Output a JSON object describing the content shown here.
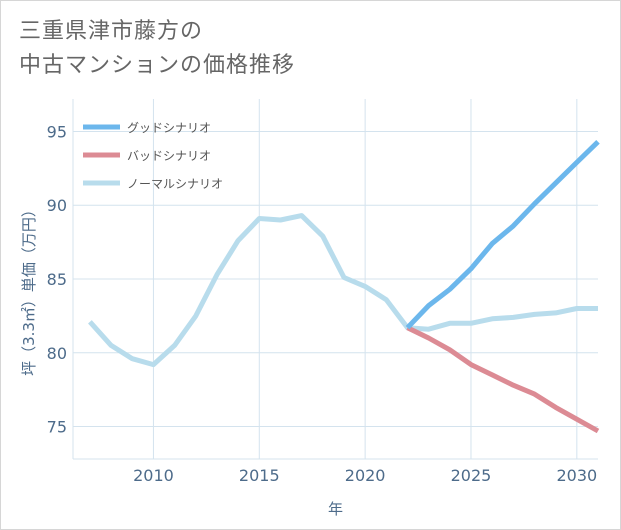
{
  "title": {
    "line1": "三重県津市藤方の",
    "line2": "中古マンションの価格推移"
  },
  "colors": {
    "good": "#6cb7ec",
    "bad": "#dc8b94",
    "normal": "#b8dcec",
    "axis": "#4d6b8a",
    "grid": "#d4e3ee"
  },
  "chart_data": {
    "type": "line",
    "title": "三重県津市藤方の中古マンションの価格推移",
    "xlabel": "年",
    "ylabel": "坪（3.3㎡）単価（万円）",
    "xlim": [
      2006.2,
      2031.0
    ],
    "ylim": [
      72.8,
      97.2
    ],
    "xticks": [
      2010,
      2015,
      2020,
      2025,
      2030
    ],
    "yticks": [
      75,
      80,
      85,
      90,
      95
    ],
    "grid": true,
    "legend_position": "top-left",
    "series": [
      {
        "name": "グッドシナリオ",
        "color_key": "good",
        "x": [
          2022,
          2023,
          2024,
          2025,
          2026,
          2027,
          2028,
          2029,
          2030,
          2031
        ],
        "values": [
          81.7,
          83.2,
          84.3,
          85.7,
          87.4,
          88.6,
          90.1,
          91.5,
          92.9,
          94.3
        ]
      },
      {
        "name": "バッドシナリオ",
        "color_key": "bad",
        "x": [
          2022,
          2023,
          2024,
          2025,
          2026,
          2027,
          2028,
          2029,
          2030,
          2031
        ],
        "values": [
          81.7,
          81.0,
          80.2,
          79.2,
          78.5,
          77.8,
          77.2,
          76.3,
          75.5,
          74.7
        ]
      },
      {
        "name": "ノーマルシナリオ",
        "color_key": "normal",
        "x": [
          2007,
          2008,
          2009,
          2010,
          2011,
          2012,
          2013,
          2014,
          2015,
          2016,
          2017,
          2018,
          2019,
          2020,
          2021,
          2022,
          2023,
          2024,
          2025,
          2026,
          2027,
          2028,
          2029,
          2030,
          2031
        ],
        "values": [
          82.1,
          80.5,
          79.6,
          79.2,
          80.5,
          82.5,
          85.3,
          87.6,
          89.1,
          89.0,
          89.3,
          87.9,
          85.1,
          84.5,
          83.6,
          81.7,
          81.6,
          82.0,
          82.0,
          82.3,
          82.4,
          82.6,
          82.7,
          83.0,
          83.0
        ]
      }
    ]
  }
}
